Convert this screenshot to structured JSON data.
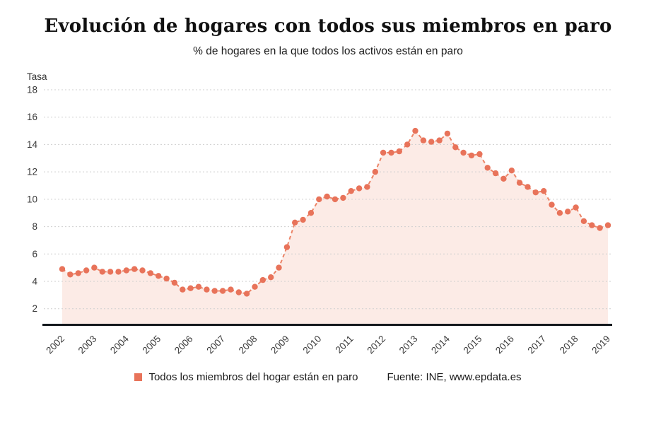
{
  "header": {
    "title": "Evolución de hogares con todos sus miembros en paro",
    "subtitle": "% de hogares en la que todos los activos están en paro"
  },
  "legend": {
    "label": "Todos los miembros del hogar están en paro",
    "source": "Fuente: INE, www.epdata.es"
  },
  "colors": {
    "accent": "#e8735a",
    "line": "#ec8467",
    "area_fill": "#fcebe6",
    "grid": "#cfcfcf",
    "axis_line": "#14181d",
    "tick_text": "#3a3a3a"
  },
  "chart_data": {
    "type": "line",
    "title": "Evolución de hogares con todos sus miembros en paro",
    "subtitle": "% de hogares en la que todos los activos están en paro",
    "y_axis_label": "Tasa",
    "xlabel": "",
    "ylabel": "Tasa",
    "ylim": [
      0.9,
      18
    ],
    "yticks": [
      2,
      4,
      6,
      8,
      10,
      12,
      14,
      16,
      18
    ],
    "grid": "horizontal-dashed",
    "legend_position": "bottom",
    "x_frequency": "quarterly",
    "x_tick_labels": [
      "2002",
      "2003",
      "2004",
      "2005",
      "2006",
      "2007",
      "2008",
      "2009",
      "2010",
      "2011",
      "2012",
      "2013",
      "2014",
      "2015",
      "2016",
      "2017",
      "2018",
      "2019"
    ],
    "series": [
      {
        "name": "Todos los miembros del hogar están en paro",
        "start": "2002-Q1",
        "end": "2019-Q1",
        "values": [
          4.9,
          4.5,
          4.6,
          4.8,
          5.0,
          4.7,
          4.7,
          4.7,
          4.8,
          4.9,
          4.8,
          4.6,
          4.4,
          4.2,
          3.9,
          3.4,
          3.5,
          3.6,
          3.4,
          3.3,
          3.3,
          3.4,
          3.2,
          3.1,
          3.6,
          4.1,
          4.3,
          5.0,
          6.5,
          8.3,
          8.5,
          9.0,
          10.0,
          10.2,
          10.0,
          10.1,
          10.6,
          10.8,
          10.9,
          12.0,
          13.4,
          13.4,
          13.5,
          14.0,
          15.0,
          14.3,
          14.2,
          14.3,
          14.8,
          13.8,
          13.4,
          13.2,
          13.3,
          12.3,
          11.9,
          11.5,
          12.1,
          11.2,
          10.9,
          10.5,
          10.6,
          9.6,
          9.0,
          9.1,
          9.4,
          8.4,
          8.1,
          7.9,
          8.1
        ]
      }
    ],
    "source": "Fuente: INE, www.epdata.es"
  }
}
